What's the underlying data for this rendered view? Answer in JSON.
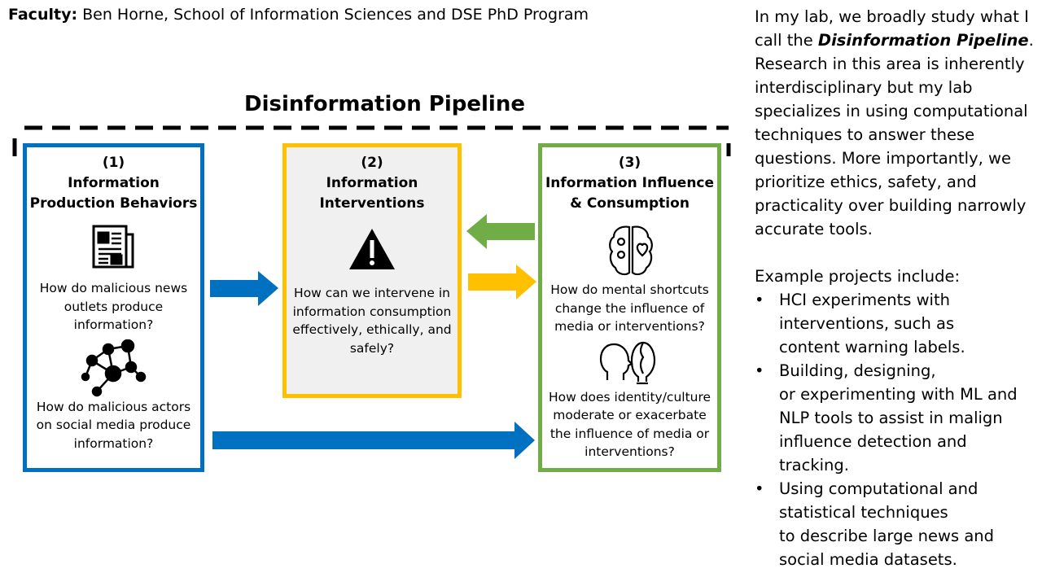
{
  "header": {
    "faculty_label": "Faculty:",
    "faculty_text": " Ben Horne, School of Information Sciences and DSE PhD Program"
  },
  "diagram": {
    "title": "Disinformation Pipeline",
    "colors": {
      "blue": "#0070C0",
      "yellow": "#FFC000",
      "green": "#70AD47",
      "box2_fill": "#F0F0F0"
    },
    "boxes": [
      {
        "number": "(1)",
        "heading_line1": "Information",
        "heading_line2": "Production Behaviors",
        "icon_1": "newspaper-icon",
        "question_1_lines": [
          "How do malicious news",
          "outlets produce",
          "information?"
        ],
        "icon_2": "network-icon",
        "question_2_lines": [
          "How do malicious actors",
          "on social media produce",
          "information?"
        ]
      },
      {
        "number": "(2)",
        "heading_line1": "Information",
        "heading_line2": "Interventions",
        "icon_1": "warning-icon",
        "question_1_lines": [
          "How can we intervene in",
          "information consumption",
          "effectively, ethically, and",
          "safely?"
        ]
      },
      {
        "number": "(3)",
        "heading_line1": "Information Influence",
        "heading_line2": "& Consumption",
        "icon_1": "brain-icon",
        "question_1_lines": [
          "How do mental shortcuts",
          "change the influence of",
          "media or interventions?"
        ],
        "icon_2": "faces-icon",
        "question_2_lines": [
          "How does identity/culture",
          "moderate or exacerbate",
          "the influence of media or",
          "interventions?"
        ]
      }
    ]
  },
  "right_panel": {
    "intro_prefix": "In my lab, we broadly study what I call the ",
    "intro_emphasis": "Disinformation Pipeline",
    "intro_suffix": ". Research in this area is inherently interdisciplinary but my lab specializes in using computational techniques to answer these questions. More importantly, we prioritize ethics, safety, and practicality over building narrowly accurate tools.",
    "projects_heading": "Example projects include:",
    "bullet_char": "•",
    "projects": [
      [
        "HCI experiments with",
        "interventions, such as",
        "content warning labels."
      ],
      [
        "Building, designing,",
        "or experimenting with ML and",
        "NLP tools to assist in malign",
        "influence detection and",
        "tracking."
      ],
      [
        "Using computational and",
        "statistical techniques",
        "to describe large news and",
        "social media datasets."
      ]
    ]
  }
}
